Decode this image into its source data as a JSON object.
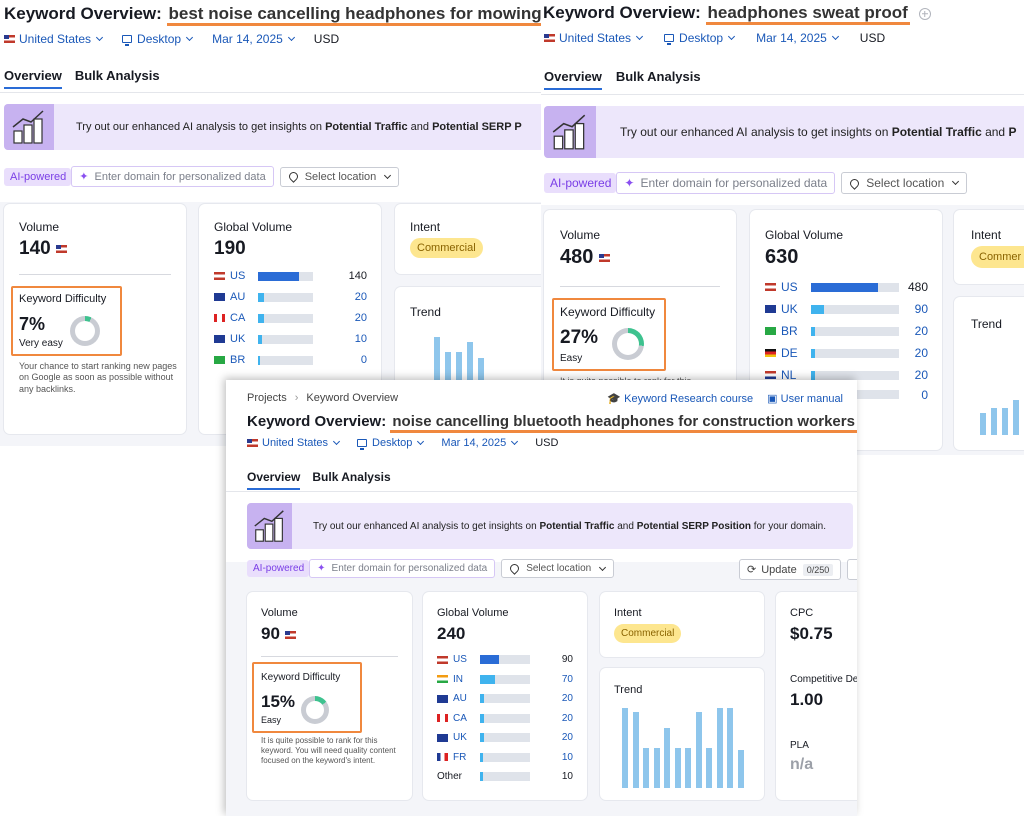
{
  "shotA": {
    "title_prefix": "Keyword Overview:",
    "keyword": "best noise cancelling headphones for mowing lawns",
    "country": "United States",
    "device": "Desktop",
    "date": "Mar 14, 2025",
    "currency": "USD",
    "tabs": [
      "Overview",
      "Bulk Analysis"
    ],
    "banner": {
      "text": "Try out our enhanced AI analysis to get insights on ",
      "traffic": "Potential Traffic",
      "and": " and ",
      "serp": "Potential SERP P"
    },
    "ai_badge": "AI-powered",
    "domain_placeholder": "Enter domain for personalized data",
    "location_placeholder": "Select location",
    "volume": {
      "label": "Volume",
      "value": "140"
    },
    "kd": {
      "label": "Keyword Difficulty",
      "value": "7%",
      "level": "Very easy",
      "percent": 7,
      "desc": "Your chance to start ranking new pages on Google as soon as possible without any backlinks."
    },
    "global_volume": {
      "label": "Global Volume",
      "value": "190",
      "rows": [
        {
          "country": "US",
          "value": "140",
          "fraction": 0.74
        },
        {
          "country": "AU",
          "value": "20",
          "fraction": 0.1
        },
        {
          "country": "CA",
          "value": "20",
          "fraction": 0.1
        },
        {
          "country": "UK",
          "value": "10",
          "fraction": 0.07
        },
        {
          "country": "BR",
          "value": "0",
          "fraction": 0.04
        }
      ]
    },
    "intent": {
      "label": "Intent",
      "value": "Commercial"
    },
    "trend": {
      "label": "Trend",
      "values": [
        0,
        0,
        0.85,
        0.55,
        0.55,
        0.75,
        0.45
      ]
    }
  },
  "shotB": {
    "title_prefix": "Keyword Overview:",
    "keyword": "headphones sweat proof",
    "country": "United States",
    "device": "Desktop",
    "date": "Mar 14, 2025",
    "currency": "USD",
    "tabs": [
      "Overview",
      "Bulk Analysis"
    ],
    "banner": {
      "text": "Try out our enhanced AI analysis to get insights on ",
      "traffic": "Potential Traffic",
      "and": " and ",
      "serp": "P"
    },
    "ai_badge": "AI-powered",
    "domain_placeholder": "Enter domain for personalized data",
    "location_placeholder": "Select location",
    "volume": {
      "label": "Volume",
      "value": "480"
    },
    "kd": {
      "label": "Keyword Difficulty",
      "value": "27%",
      "level": "Easy",
      "percent": 27,
      "desc": "It is quite possible to rank for this"
    },
    "global_volume": {
      "label": "Global Volume",
      "value": "630",
      "rows": [
        {
          "country": "US",
          "value": "480",
          "fraction": 0.76
        },
        {
          "country": "UK",
          "value": "90",
          "fraction": 0.15
        },
        {
          "country": "BR",
          "value": "20",
          "fraction": 0.05
        },
        {
          "country": "DE",
          "value": "20",
          "fraction": 0.05
        },
        {
          "country": "NL",
          "value": "20",
          "fraction": 0.05
        },
        {
          "country": "",
          "value": "0",
          "fraction": 0.03
        }
      ]
    },
    "intent": {
      "label": "Intent",
      "value": "Commer"
    },
    "trend": {
      "label": "Trend",
      "values": [
        0.45,
        0.55,
        0.55,
        0.7,
        0.8
      ]
    }
  },
  "shotC": {
    "breadcrumb": [
      "Projects",
      "Keyword Overview"
    ],
    "course_link": "Keyword Research course",
    "manual_link": "User manual",
    "title_prefix": "Keyword Overview:",
    "keyword": "noise cancelling bluetooth headphones for construction workers",
    "country": "United States",
    "device": "Desktop",
    "date": "Mar 14, 2025",
    "currency": "USD",
    "tabs": [
      "Overview",
      "Bulk Analysis"
    ],
    "banner": {
      "text": "Try out our enhanced AI analysis to get insights on ",
      "traffic": "Potential Traffic",
      "and": " and ",
      "serp": "Potential SERP Position",
      "tail": " for your domain."
    },
    "ai_badge": "AI-powered",
    "domain_placeholder": "Enter domain for personalized data",
    "location_placeholder": "Select location",
    "update_label": "Update",
    "update_count": "0/250",
    "volume": {
      "label": "Volume",
      "value": "90"
    },
    "kd": {
      "label": "Keyword Difficulty",
      "value": "15%",
      "level": "Easy",
      "percent": 15,
      "desc": "It is quite possible to rank for this keyword. You will need quality content focused on the keyword's intent."
    },
    "global_volume": {
      "label": "Global Volume",
      "value": "240",
      "rows": [
        {
          "country": "US",
          "value": "90",
          "fraction": 0.38
        },
        {
          "country": "IN",
          "value": "70",
          "fraction": 0.3
        },
        {
          "country": "AU",
          "value": "20",
          "fraction": 0.08
        },
        {
          "country": "CA",
          "value": "20",
          "fraction": 0.08
        },
        {
          "country": "UK",
          "value": "20",
          "fraction": 0.08
        },
        {
          "country": "FR",
          "value": "10",
          "fraction": 0.05
        },
        {
          "country": "Other",
          "value": "10",
          "fraction": 0.05
        }
      ]
    },
    "intent": {
      "label": "Intent",
      "value": "Commercial"
    },
    "trend": {
      "label": "Trend",
      "values": [
        1,
        0.95,
        0.5,
        0.5,
        0.75,
        0.5,
        0.5,
        0.95,
        0.5,
        1,
        1,
        0.47
      ]
    },
    "cpc": {
      "label": "CPC",
      "value": "$0.75"
    },
    "competitive_density": {
      "label": "Competitive De",
      "value": "1.00"
    },
    "pla": {
      "label": "PLA",
      "value": "n/a"
    }
  },
  "colors": {
    "accent_orange": "#f0883e",
    "link_blue": "#1a58b8",
    "bar_blue": "#2a6cd6",
    "bar_light": "#3fb3ee",
    "trend_blue": "#8ec6ec",
    "kd_green": "#3ec28f",
    "intent_yellow": "#fde68f",
    "ai_purple": "#7a3ee6"
  }
}
